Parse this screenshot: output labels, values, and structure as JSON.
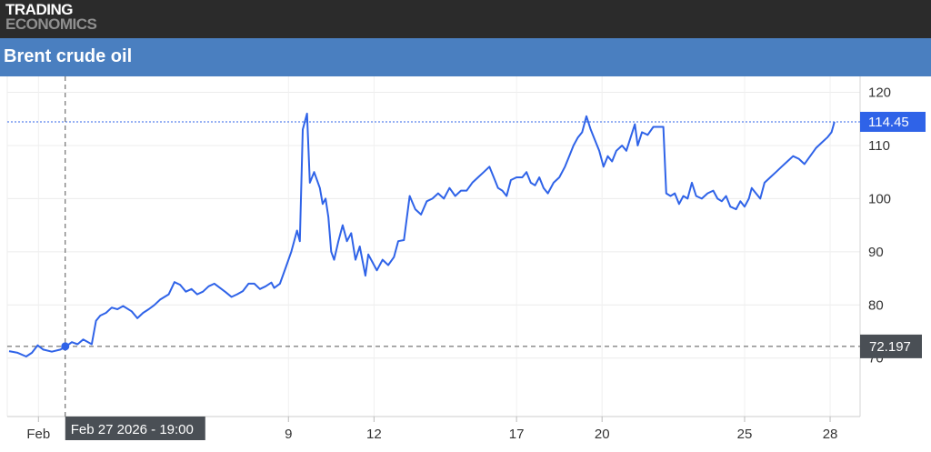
{
  "header": {
    "logo_line1": "TRADING",
    "logo_line2": "ECONOMICS"
  },
  "title": "Brent crude oil",
  "colors": {
    "series": "#2f63e8",
    "header_bg": "#2b2b2b",
    "title_bg": "#4a7fc0",
    "current_badge": "#2f63e8",
    "crosshair_badge": "#4a4f55"
  },
  "chart_data": {
    "type": "line",
    "title": "Brent crude oil",
    "xlabel": "",
    "ylabel": "",
    "ylim": [
      59,
      123
    ],
    "y_ticks": [
      {
        "label": "120",
        "value": 120
      },
      {
        "label": "110",
        "value": 110
      },
      {
        "label": "100",
        "value": 100
      },
      {
        "label": "90",
        "value": 90
      },
      {
        "label": "80",
        "value": 80
      },
      {
        "label": "70",
        "value": 70
      }
    ],
    "x_ticks": [
      {
        "label": "Feb",
        "pos": 0.03
      },
      {
        "label": "9",
        "pos": 8.8
      },
      {
        "label": "12",
        "pos": 11.8
      },
      {
        "label": "17",
        "pos": 16.8
      },
      {
        "label": "20",
        "pos": 19.8
      },
      {
        "label": "25",
        "pos": 24.8
      },
      {
        "label": "28",
        "pos": 27.8
      }
    ],
    "xlim": [
      -1,
      28.5
    ],
    "grid": true,
    "current_value": {
      "label": "114.45",
      "value": 114.45
    },
    "crosshair": {
      "date_label": "Feb 27 2026 - 19:00",
      "value_label": "72.197",
      "x": 0.97,
      "y": 72.197
    },
    "series": [
      {
        "values": [
          [
            -1.0,
            71.3
          ],
          [
            -0.7,
            71.0
          ],
          [
            -0.4,
            70.3
          ],
          [
            -0.2,
            71.0
          ],
          [
            0.0,
            72.4
          ],
          [
            0.2,
            71.6
          ],
          [
            0.5,
            71.2
          ],
          [
            0.8,
            71.6
          ],
          [
            1.0,
            72.2
          ],
          [
            1.2,
            73.0
          ],
          [
            1.4,
            72.6
          ],
          [
            1.6,
            73.5
          ],
          [
            1.9,
            72.6
          ],
          [
            2.05,
            77.0
          ],
          [
            2.2,
            78.0
          ],
          [
            2.4,
            78.5
          ],
          [
            2.6,
            79.5
          ],
          [
            2.8,
            79.2
          ],
          [
            3.0,
            79.8
          ],
          [
            3.3,
            78.8
          ],
          [
            3.5,
            77.5
          ],
          [
            3.7,
            78.5
          ],
          [
            3.9,
            79.2
          ],
          [
            4.1,
            80.0
          ],
          [
            4.3,
            81.0
          ],
          [
            4.6,
            82.0
          ],
          [
            4.8,
            84.3
          ],
          [
            5.0,
            83.8
          ],
          [
            5.2,
            82.5
          ],
          [
            5.4,
            83.0
          ],
          [
            5.6,
            82.0
          ],
          [
            5.8,
            82.5
          ],
          [
            6.0,
            83.5
          ],
          [
            6.2,
            84.0
          ],
          [
            6.4,
            83.2
          ],
          [
            6.6,
            82.4
          ],
          [
            6.8,
            81.5
          ],
          [
            7.0,
            82.0
          ],
          [
            7.2,
            82.6
          ],
          [
            7.4,
            84.0
          ],
          [
            7.6,
            84.0
          ],
          [
            7.8,
            83.0
          ],
          [
            8.0,
            83.5
          ],
          [
            8.2,
            84.2
          ],
          [
            8.3,
            83.2
          ],
          [
            8.5,
            84.0
          ],
          [
            8.7,
            87.0
          ],
          [
            8.9,
            90.0
          ],
          [
            9.1,
            94.0
          ],
          [
            9.2,
            92.0
          ],
          [
            9.3,
            113.0
          ],
          [
            9.45,
            116.0
          ],
          [
            9.55,
            103.0
          ],
          [
            9.7,
            105.0
          ],
          [
            9.9,
            102.0
          ],
          [
            10.0,
            99.0
          ],
          [
            10.1,
            100.0
          ],
          [
            10.2,
            96.5
          ],
          [
            10.3,
            90.0
          ],
          [
            10.4,
            88.5
          ],
          [
            10.55,
            92.0
          ],
          [
            10.7,
            95.0
          ],
          [
            10.85,
            92.0
          ],
          [
            11.0,
            93.5
          ],
          [
            11.15,
            88.5
          ],
          [
            11.3,
            91.0
          ],
          [
            11.5,
            85.5
          ],
          [
            11.6,
            89.5
          ],
          [
            11.75,
            88.0
          ],
          [
            11.9,
            86.5
          ],
          [
            12.1,
            88.5
          ],
          [
            12.3,
            87.5
          ],
          [
            12.5,
            89.0
          ],
          [
            12.65,
            92.0
          ],
          [
            12.85,
            92.2
          ],
          [
            13.05,
            100.5
          ],
          [
            13.25,
            98.0
          ],
          [
            13.45,
            97.0
          ],
          [
            13.65,
            99.5
          ],
          [
            13.85,
            100.0
          ],
          [
            14.05,
            101.0
          ],
          [
            14.25,
            100.0
          ],
          [
            14.45,
            102.0
          ],
          [
            14.65,
            100.5
          ],
          [
            14.85,
            101.5
          ],
          [
            15.05,
            101.5
          ],
          [
            15.25,
            103.0
          ],
          [
            15.45,
            104.0
          ],
          [
            15.65,
            105.0
          ],
          [
            15.85,
            106.0
          ],
          [
            16.0,
            104.0
          ],
          [
            16.15,
            102.0
          ],
          [
            16.3,
            101.5
          ],
          [
            16.45,
            100.5
          ],
          [
            16.6,
            103.5
          ],
          [
            16.8,
            104.0
          ],
          [
            17.0,
            104.0
          ],
          [
            17.15,
            105.0
          ],
          [
            17.3,
            103.0
          ],
          [
            17.45,
            102.5
          ],
          [
            17.6,
            104.0
          ],
          [
            17.75,
            102.0
          ],
          [
            17.9,
            101.0
          ],
          [
            18.1,
            103.0
          ],
          [
            18.3,
            104.0
          ],
          [
            18.5,
            106.0
          ],
          [
            18.65,
            108.0
          ],
          [
            18.8,
            110.0
          ],
          [
            18.95,
            111.5
          ],
          [
            19.1,
            112.5
          ],
          [
            19.25,
            115.5
          ],
          [
            19.4,
            113.0
          ],
          [
            19.55,
            111.0
          ],
          [
            19.7,
            109.0
          ],
          [
            19.85,
            106.0
          ],
          [
            20.0,
            108.0
          ],
          [
            20.15,
            107.0
          ],
          [
            20.3,
            109.0
          ],
          [
            20.5,
            110.0
          ],
          [
            20.65,
            109.0
          ],
          [
            20.8,
            111.5
          ],
          [
            20.95,
            114.0
          ],
          [
            21.05,
            110.0
          ],
          [
            21.2,
            112.5
          ],
          [
            21.4,
            112.0
          ],
          [
            21.6,
            113.5
          ],
          [
            21.8,
            113.5
          ],
          [
            21.95,
            113.5
          ],
          [
            22.05,
            101.0
          ],
          [
            22.2,
            100.5
          ],
          [
            22.35,
            101.0
          ],
          [
            22.5,
            99.0
          ],
          [
            22.65,
            100.5
          ],
          [
            22.8,
            100.0
          ],
          [
            22.95,
            103.0
          ],
          [
            23.1,
            100.5
          ],
          [
            23.3,
            100.0
          ],
          [
            23.5,
            101.0
          ],
          [
            23.7,
            101.5
          ],
          [
            23.85,
            100.0
          ],
          [
            24.0,
            99.5
          ],
          [
            24.15,
            100.5
          ],
          [
            24.3,
            98.5
          ],
          [
            24.5,
            98.0
          ],
          [
            24.65,
            99.5
          ],
          [
            24.8,
            98.5
          ],
          [
            24.95,
            100.0
          ],
          [
            25.05,
            102.0
          ],
          [
            25.2,
            101.0
          ],
          [
            25.35,
            100.0
          ],
          [
            25.5,
            103.0
          ],
          [
            25.7,
            104.0
          ],
          [
            25.9,
            105.0
          ],
          [
            26.1,
            106.0
          ],
          [
            26.3,
            107.0
          ],
          [
            26.5,
            108.0
          ],
          [
            26.7,
            107.5
          ],
          [
            26.9,
            106.5
          ],
          [
            27.1,
            108.0
          ],
          [
            27.3,
            109.5
          ],
          [
            27.5,
            110.5
          ],
          [
            27.7,
            111.5
          ],
          [
            27.85,
            112.5
          ],
          [
            27.95,
            114.45
          ]
        ]
      }
    ]
  }
}
